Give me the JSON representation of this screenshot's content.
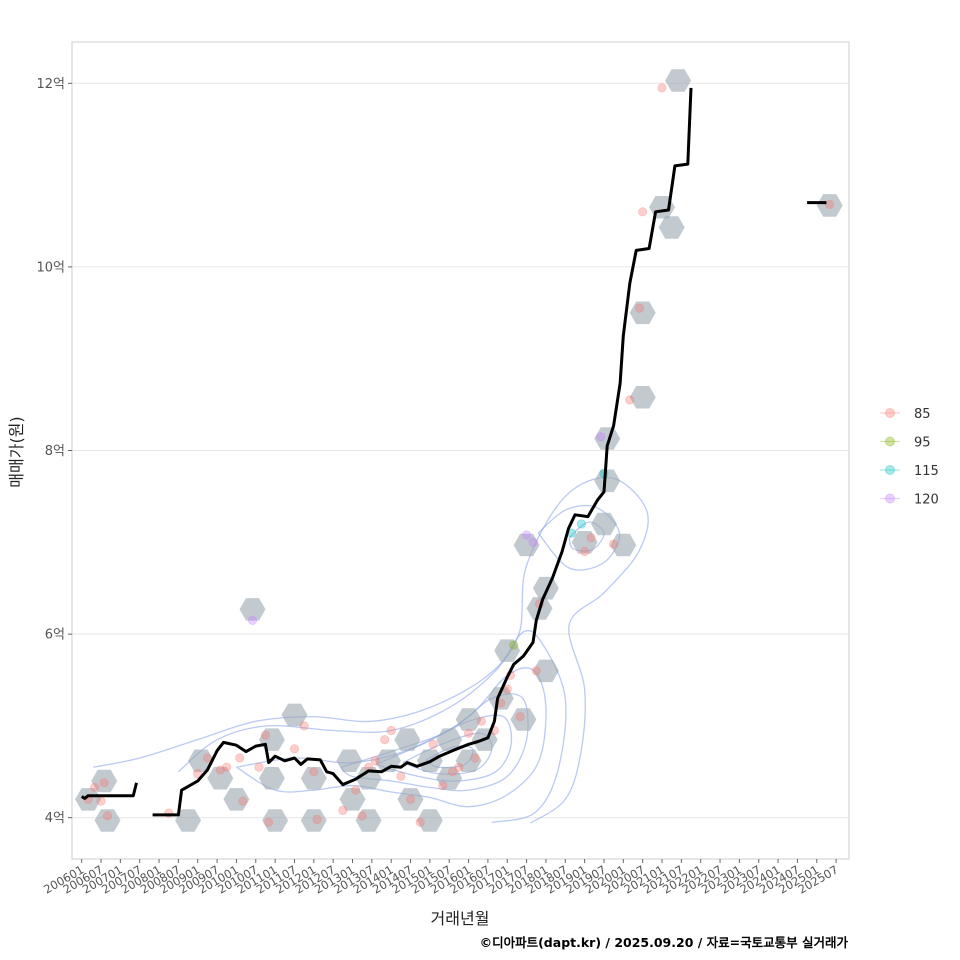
{
  "chart_data": {
    "type": "scatter",
    "xlabel": "거래년월",
    "ylabel": "매매가(원)",
    "caption": "©디아파트(dapt.kr) / 2025.09.20 / 자료=국토교통부 실거래가",
    "x_ticks": [
      "200601",
      "200607",
      "200701",
      "200707",
      "200801",
      "200807",
      "200901",
      "200907",
      "201001",
      "201007",
      "201101",
      "201107",
      "201201",
      "201207",
      "201301",
      "201307",
      "201401",
      "201407",
      "201501",
      "201507",
      "201601",
      "201607",
      "201701",
      "201707",
      "201801",
      "201807",
      "201901",
      "201907",
      "202001",
      "202007",
      "202101",
      "202107",
      "202201",
      "202207",
      "202301",
      "202307",
      "202401",
      "202407",
      "202501",
      "202507"
    ],
    "y_ticks": [
      {
        "value": 4,
        "label": "4억"
      },
      {
        "value": 6,
        "label": "6억"
      },
      {
        "value": 8,
        "label": "8억"
      },
      {
        "value": 10,
        "label": "10억"
      },
      {
        "value": 12,
        "label": "12억"
      }
    ],
    "xlim": [
      "2005-10",
      "2025-11"
    ],
    "ylim": [
      3.55,
      12.45
    ],
    "grid": true,
    "legend_position": "right",
    "legend": [
      {
        "name": "85",
        "color": "#F8766D"
      },
      {
        "name": "95",
        "color": "#7CAE00"
      },
      {
        "name": "115",
        "color": "#00BFC4"
      },
      {
        "name": "120",
        "color": "#C77CFF"
      }
    ],
    "trend_line": {
      "color": "#000000",
      "segments": [
        [
          [
            "2006-01",
            4.23
          ],
          [
            "2006-02",
            4.21
          ],
          [
            "2006-03",
            4.24
          ],
          [
            "2007-01",
            4.24
          ],
          [
            "2007-05",
            4.24
          ],
          [
            "2007-06",
            4.38
          ]
        ],
        [
          [
            "2007-11",
            4.03
          ],
          [
            "2008-07",
            4.03
          ],
          [
            "2008-08",
            4.3
          ],
          [
            "2009-01",
            4.4
          ],
          [
            "2009-04",
            4.52
          ],
          [
            "2009-07",
            4.73
          ],
          [
            "2009-09",
            4.82
          ],
          [
            "2010-01",
            4.79
          ],
          [
            "2010-04",
            4.72
          ],
          [
            "2010-07",
            4.78
          ],
          [
            "2010-10",
            4.8
          ],
          [
            "2010-11",
            4.6
          ],
          [
            "2011-01",
            4.67
          ],
          [
            "2011-04",
            4.62
          ],
          [
            "2011-07",
            4.65
          ],
          [
            "2011-09",
            4.58
          ],
          [
            "2011-11",
            4.64
          ],
          [
            "2012-03",
            4.63
          ],
          [
            "2012-05",
            4.5
          ],
          [
            "2012-07",
            4.48
          ],
          [
            "2012-10",
            4.36
          ],
          [
            "2013-02",
            4.42
          ],
          [
            "2013-06",
            4.51
          ],
          [
            "2013-10",
            4.5
          ],
          [
            "2014-01",
            4.56
          ],
          [
            "2014-04",
            4.55
          ],
          [
            "2014-06",
            4.6
          ],
          [
            "2014-09",
            4.56
          ],
          [
            "2015-01",
            4.61
          ],
          [
            "2015-04",
            4.67
          ],
          [
            "2015-08",
            4.73
          ],
          [
            "2016-01",
            4.8
          ],
          [
            "2016-04",
            4.83
          ],
          [
            "2016-07",
            4.87
          ],
          [
            "2016-09",
            5.05
          ],
          [
            "2016-10",
            5.3
          ],
          [
            "2017-01",
            5.53
          ],
          [
            "2017-03",
            5.67
          ],
          [
            "2017-06",
            5.76
          ],
          [
            "2017-09",
            5.91
          ],
          [
            "2017-10",
            6.15
          ],
          [
            "2017-12",
            6.38
          ],
          [
            "2018-03",
            6.61
          ],
          [
            "2018-06",
            6.9
          ],
          [
            "2018-08",
            7.15
          ],
          [
            "2018-10",
            7.3
          ],
          [
            "2019-02",
            7.28
          ],
          [
            "2019-05",
            7.46
          ],
          [
            "2019-07",
            7.55
          ],
          [
            "2019-08",
            8.05
          ],
          [
            "2019-10",
            8.27
          ],
          [
            "2019-12",
            8.73
          ],
          [
            "2020-01",
            9.25
          ],
          [
            "2020-03",
            9.82
          ],
          [
            "2020-05",
            10.18
          ],
          [
            "2020-09",
            10.2
          ],
          [
            "2020-11",
            10.6
          ],
          [
            "2021-03",
            10.62
          ],
          [
            "2021-05",
            11.1
          ],
          [
            "2021-09",
            11.12
          ],
          [
            "2021-10",
            11.95
          ]
        ],
        [
          [
            "2024-10",
            10.7
          ],
          [
            "2025-04",
            10.7
          ]
        ]
      ]
    },
    "points": [
      {
        "x": "2006-03",
        "y": 4.2,
        "size": "85"
      },
      {
        "x": "2006-05",
        "y": 4.33,
        "size": "85"
      },
      {
        "x": "2006-08",
        "y": 4.38,
        "size": "85"
      },
      {
        "x": "2006-09",
        "y": 4.02,
        "size": "85"
      },
      {
        "x": "2006-07",
        "y": 4.18,
        "size": "85"
      },
      {
        "x": "2008-04",
        "y": 4.05,
        "size": "85"
      },
      {
        "x": "2009-01",
        "y": 4.48,
        "size": "85"
      },
      {
        "x": "2009-04",
        "y": 4.65,
        "size": "85"
      },
      {
        "x": "2009-08",
        "y": 4.52,
        "size": "85"
      },
      {
        "x": "2009-10",
        "y": 4.55,
        "size": "85"
      },
      {
        "x": "2010-02",
        "y": 4.65,
        "size": "85"
      },
      {
        "x": "2010-03",
        "y": 4.18,
        "size": "85"
      },
      {
        "x": "2010-06",
        "y": 6.15,
        "size": "120"
      },
      {
        "x": "2010-08",
        "y": 4.55,
        "size": "85"
      },
      {
        "x": "2010-10",
        "y": 4.9,
        "size": "85"
      },
      {
        "x": "2010-11",
        "y": 3.95,
        "size": "85"
      },
      {
        "x": "2011-07",
        "y": 4.75,
        "size": "85"
      },
      {
        "x": "2011-10",
        "y": 5.0,
        "size": "85"
      },
      {
        "x": "2012-01",
        "y": 4.5,
        "size": "85"
      },
      {
        "x": "2012-02",
        "y": 3.98,
        "size": "85"
      },
      {
        "x": "2012-10",
        "y": 4.08,
        "size": "85"
      },
      {
        "x": "2013-02",
        "y": 4.3,
        "size": "85"
      },
      {
        "x": "2013-04",
        "y": 4.02,
        "size": "85"
      },
      {
        "x": "2013-06",
        "y": 4.55,
        "size": "85"
      },
      {
        "x": "2013-08",
        "y": 4.62,
        "size": "85"
      },
      {
        "x": "2013-11",
        "y": 4.85,
        "size": "85"
      },
      {
        "x": "2014-01",
        "y": 4.95,
        "size": "85"
      },
      {
        "x": "2014-04",
        "y": 4.45,
        "size": "85"
      },
      {
        "x": "2014-07",
        "y": 4.2,
        "size": "85"
      },
      {
        "x": "2014-10",
        "y": 3.95,
        "size": "85"
      },
      {
        "x": "2015-02",
        "y": 4.8,
        "size": "85"
      },
      {
        "x": "2015-05",
        "y": 4.35,
        "size": "85"
      },
      {
        "x": "2015-08",
        "y": 4.5,
        "size": "85"
      },
      {
        "x": "2015-10",
        "y": 4.55,
        "size": "85"
      },
      {
        "x": "2016-01",
        "y": 4.92,
        "size": "85"
      },
      {
        "x": "2016-03",
        "y": 4.65,
        "size": "85"
      },
      {
        "x": "2016-05",
        "y": 5.05,
        "size": "85"
      },
      {
        "x": "2016-09",
        "y": 4.95,
        "size": "85"
      },
      {
        "x": "2016-11",
        "y": 5.25,
        "size": "85"
      },
      {
        "x": "2017-01",
        "y": 5.4,
        "size": "85"
      },
      {
        "x": "2017-02",
        "y": 5.55,
        "size": "85"
      },
      {
        "x": "2017-03",
        "y": 5.88,
        "size": "95"
      },
      {
        "x": "2017-05",
        "y": 5.1,
        "size": "85"
      },
      {
        "x": "2017-07",
        "y": 7.08,
        "size": "120"
      },
      {
        "x": "2017-09",
        "y": 7.0,
        "size": "120"
      },
      {
        "x": "2017-11",
        "y": 6.33,
        "size": "85"
      },
      {
        "x": "2017-10",
        "y": 5.6,
        "size": "85"
      },
      {
        "x": "2018-09",
        "y": 7.1,
        "size": "115"
      },
      {
        "x": "2018-12",
        "y": 7.2,
        "size": "115"
      },
      {
        "x": "2019-03",
        "y": 7.05,
        "size": "85"
      },
      {
        "x": "2019-01",
        "y": 6.9,
        "size": "85"
      },
      {
        "x": "2019-06",
        "y": 8.15,
        "size": "120"
      },
      {
        "x": "2019-07",
        "y": 7.75,
        "size": "115"
      },
      {
        "x": "2019-10",
        "y": 6.98,
        "size": "85"
      },
      {
        "x": "2020-03",
        "y": 8.55,
        "size": "85"
      },
      {
        "x": "2020-06",
        "y": 9.55,
        "size": "85"
      },
      {
        "x": "2020-07",
        "y": 10.6,
        "size": "85"
      },
      {
        "x": "2021-01",
        "y": 11.95,
        "size": "85"
      },
      {
        "x": "2025-05",
        "y": 10.68,
        "size": "85"
      }
    ],
    "hexbins": [
      {
        "x": "2006-08",
        "y": 4.4
      },
      {
        "x": "2006-03",
        "y": 4.2
      },
      {
        "x": "2006-09",
        "y": 3.97
      },
      {
        "x": "2008-10",
        "y": 3.97
      },
      {
        "x": "2009-02",
        "y": 4.62
      },
      {
        "x": "2009-08",
        "y": 4.43
      },
      {
        "x": "2010-01",
        "y": 4.2
      },
      {
        "x": "2010-06",
        "y": 6.27
      },
      {
        "x": "2010-12",
        "y": 4.85
      },
      {
        "x": "2010-12",
        "y": 4.43
      },
      {
        "x": "2011-01",
        "y": 3.97
      },
      {
        "x": "2011-07",
        "y": 5.12
      },
      {
        "x": "2012-01",
        "y": 4.43
      },
      {
        "x": "2012-01",
        "y": 3.97
      },
      {
        "x": "2012-12",
        "y": 4.62
      },
      {
        "x": "2013-01",
        "y": 4.2
      },
      {
        "x": "2013-06",
        "y": 3.97
      },
      {
        "x": "2013-06",
        "y": 4.43
      },
      {
        "x": "2013-12",
        "y": 4.62
      },
      {
        "x": "2014-07",
        "y": 4.2
      },
      {
        "x": "2014-06",
        "y": 4.85
      },
      {
        "x": "2015-01",
        "y": 3.97
      },
      {
        "x": "2015-01",
        "y": 4.62
      },
      {
        "x": "2015-07",
        "y": 4.85
      },
      {
        "x": "2015-07",
        "y": 4.43
      },
      {
        "x": "2016-01",
        "y": 4.62
      },
      {
        "x": "2016-01",
        "y": 5.07
      },
      {
        "x": "2016-06",
        "y": 4.85
      },
      {
        "x": "2016-11",
        "y": 5.3
      },
      {
        "x": "2017-01",
        "y": 5.82
      },
      {
        "x": "2017-06",
        "y": 5.07
      },
      {
        "x": "2017-07",
        "y": 6.97
      },
      {
        "x": "2017-11",
        "y": 6.28
      },
      {
        "x": "2018-01",
        "y": 6.5
      },
      {
        "x": "2018-01",
        "y": 5.6
      },
      {
        "x": "2019-01",
        "y": 7.0
      },
      {
        "x": "2019-07",
        "y": 7.2
      },
      {
        "x": "2019-08",
        "y": 7.67
      },
      {
        "x": "2019-08",
        "y": 8.13
      },
      {
        "x": "2020-01",
        "y": 6.97
      },
      {
        "x": "2020-07",
        "y": 8.58
      },
      {
        "x": "2020-07",
        "y": 9.5
      },
      {
        "x": "2021-01",
        "y": 10.65
      },
      {
        "x": "2021-04",
        "y": 10.43
      },
      {
        "x": "2021-06",
        "y": 12.03
      },
      {
        "x": "2025-05",
        "y": 10.67
      }
    ],
    "density_contours": [
      [
        [
          2006.3,
          4.55
        ],
        [
          2007.5,
          4.65
        ],
        [
          2009.0,
          4.85
        ],
        [
          2010.5,
          5.05
        ],
        [
          2012.0,
          5.1
        ],
        [
          2013.5,
          5.05
        ],
        [
          2015.0,
          5.2
        ],
        [
          2016.5,
          5.55
        ],
        [
          2017.3,
          6.0
        ],
        [
          2017.5,
          6.75
        ],
        [
          2018.5,
          7.5
        ],
        [
          2019.7,
          7.7
        ],
        [
          2020.6,
          7.35
        ],
        [
          2020.4,
          6.9
        ],
        [
          2019.5,
          6.45
        ],
        [
          2018.6,
          6.1
        ],
        [
          2019.0,
          5.4
        ],
        [
          2018.9,
          4.7
        ],
        [
          2018.5,
          4.2
        ],
        [
          2017.6,
          3.94
        ]
      ],
      [
        [
          2008.5,
          4.5
        ],
        [
          2009.5,
          4.85
        ],
        [
          2010.8,
          5.0
        ],
        [
          2012.5,
          4.95
        ],
        [
          2014.0,
          4.95
        ],
        [
          2015.5,
          5.2
        ],
        [
          2016.7,
          5.6
        ],
        [
          2017.4,
          6.02
        ],
        [
          2017.9,
          5.9
        ],
        [
          2018.5,
          5.3
        ],
        [
          2018.3,
          4.5
        ],
        [
          2017.7,
          4.05
        ],
        [
          2016.6,
          3.95
        ]
      ],
      [
        [
          2010.0,
          4.55
        ],
        [
          2011.5,
          4.65
        ],
        [
          2013.0,
          4.6
        ],
        [
          2014.5,
          4.75
        ],
        [
          2016.0,
          5.1
        ],
        [
          2017.0,
          5.55
        ],
        [
          2017.7,
          5.6
        ],
        [
          2018.0,
          5.2
        ],
        [
          2017.8,
          4.6
        ],
        [
          2017.0,
          4.25
        ],
        [
          2016.0,
          4.12
        ],
        [
          2015.0,
          4.22
        ],
        [
          2014.0,
          4.28
        ],
        [
          2013.0,
          4.35
        ],
        [
          2012.0,
          4.3
        ],
        [
          2011.0,
          4.3
        ],
        [
          2010.0,
          4.55
        ]
      ],
      [
        [
          2012.7,
          4.55
        ],
        [
          2014.0,
          4.72
        ],
        [
          2015.5,
          4.95
        ],
        [
          2016.6,
          5.3
        ],
        [
          2017.4,
          5.3
        ],
        [
          2017.5,
          4.85
        ],
        [
          2017.0,
          4.45
        ],
        [
          2016.0,
          4.3
        ],
        [
          2015.0,
          4.33
        ],
        [
          2014.0,
          4.4
        ],
        [
          2013.0,
          4.45
        ],
        [
          2012.7,
          4.55
        ]
      ],
      [
        [
          2013.6,
          4.58
        ],
        [
          2014.8,
          4.8
        ],
        [
          2016.0,
          5.05
        ],
        [
          2016.9,
          5.1
        ],
        [
          2017.1,
          4.8
        ],
        [
          2016.7,
          4.5
        ],
        [
          2015.7,
          4.4
        ],
        [
          2014.7,
          4.45
        ],
        [
          2013.6,
          4.58
        ]
      ],
      [
        [
          2014.3,
          4.6
        ],
        [
          2015.3,
          4.8
        ],
        [
          2016.3,
          4.92
        ],
        [
          2016.6,
          4.75
        ],
        [
          2016.2,
          4.52
        ],
        [
          2015.2,
          4.48
        ],
        [
          2014.3,
          4.6
        ]
      ],
      [
        [
          2014.9,
          4.63
        ],
        [
          2015.6,
          4.77
        ],
        [
          2016.1,
          4.75
        ],
        [
          2015.9,
          4.58
        ],
        [
          2015.2,
          4.55
        ],
        [
          2014.9,
          4.63
        ]
      ],
      [
        [
          2017.8,
          7.1
        ],
        [
          2018.5,
          7.35
        ],
        [
          2019.3,
          7.38
        ],
        [
          2019.9,
          7.1
        ],
        [
          2019.5,
          6.78
        ],
        [
          2018.6,
          6.72
        ],
        [
          2017.8,
          7.1
        ]
      ],
      [
        [
          2018.6,
          7.05
        ],
        [
          2019.1,
          7.22
        ],
        [
          2019.5,
          7.1
        ],
        [
          2019.2,
          6.92
        ],
        [
          2018.7,
          6.93
        ],
        [
          2018.6,
          7.05
        ]
      ]
    ]
  }
}
